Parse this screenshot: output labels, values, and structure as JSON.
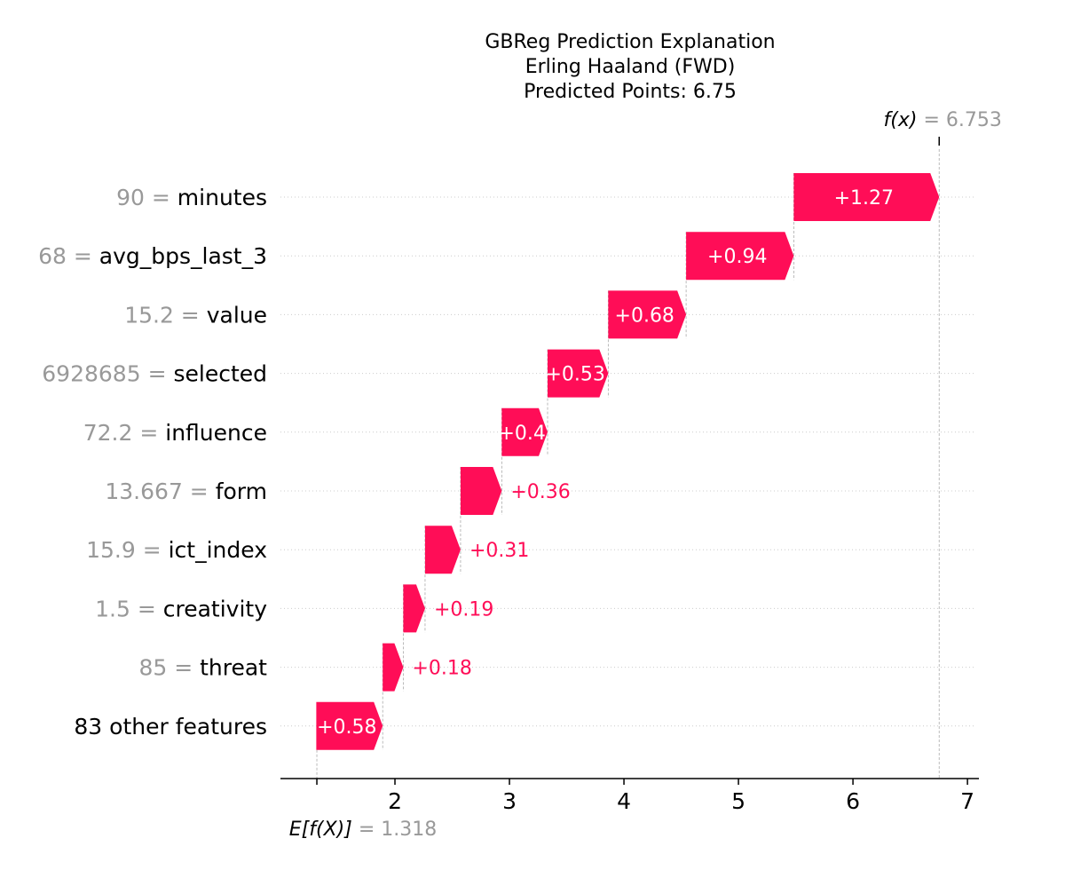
{
  "chart_data": {
    "type": "bar",
    "subtype": "shap-waterfall",
    "title": [
      "GBReg Prediction Explanation",
      "Erling Haaland (FWD)",
      "Predicted Points: 6.75"
    ],
    "base_value": 1.318,
    "base_value_label": "1.318",
    "prediction": 6.753,
    "prediction_label": "6.753",
    "fx_symbol": "f(x)",
    "ex_symbol": "E[f(X)]",
    "xlim": [
      1.0,
      7.1
    ],
    "xticks": [
      2,
      3,
      4,
      5,
      6,
      7
    ],
    "grid": false,
    "colors": {
      "positive": "#ff0d57",
      "feature_value": "#999999",
      "text": "#000000"
    },
    "features": [
      {
        "value": "90",
        "name": "minutes",
        "contribution": 1.27,
        "label": "+1.27"
      },
      {
        "value": "68",
        "name": "avg_bps_last_3",
        "contribution": 0.94,
        "label": "+0.94"
      },
      {
        "value": "15.2",
        "name": "value",
        "contribution": 0.68,
        "label": "+0.68"
      },
      {
        "value": "6928685",
        "name": "selected",
        "contribution": 0.53,
        "label": "+0.53"
      },
      {
        "value": "72.2",
        "name": "influence",
        "contribution": 0.4,
        "label": "+0.4"
      },
      {
        "value": "13.667",
        "name": "form",
        "contribution": 0.36,
        "label": "+0.36"
      },
      {
        "value": "15.9",
        "name": "ict_index",
        "contribution": 0.31,
        "label": "+0.31"
      },
      {
        "value": "1.5",
        "name": "creativity",
        "contribution": 0.19,
        "label": "+0.19"
      },
      {
        "value": "85",
        "name": "threat",
        "contribution": 0.18,
        "label": "+0.18"
      },
      {
        "value": "",
        "name": "83 other features",
        "contribution": 0.58,
        "label": "+0.58"
      }
    ]
  }
}
